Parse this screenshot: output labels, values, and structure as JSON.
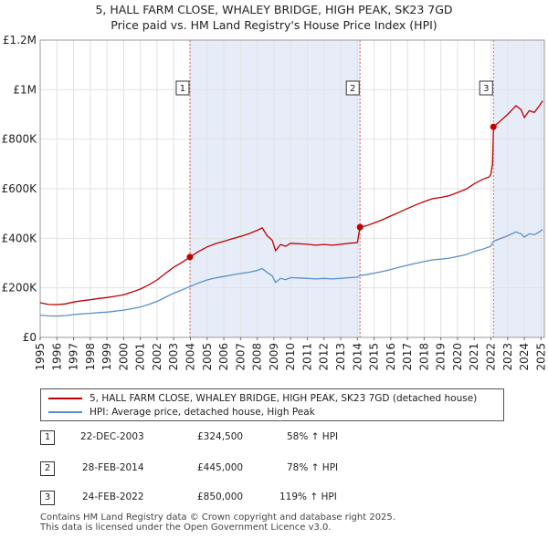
{
  "title": "5, HALL FARM CLOSE, WHALEY BRIDGE, HIGH PEAK, SK23 7GD",
  "subtitle": "Price paid vs. HM Land Registry's House Price Index (HPI)",
  "colors": {
    "property": "#c00000",
    "hpi": "#5b8fc9",
    "shade": "#e6ecf8",
    "marker_line": "#e06060"
  },
  "chart_data": {
    "type": "line",
    "x_range": [
      1995,
      2025.2
    ],
    "y_range": [
      0,
      1200000
    ],
    "y_ticks": [
      {
        "value": 0,
        "label": "£0"
      },
      {
        "value": 200000,
        "label": "£200K"
      },
      {
        "value": 400000,
        "label": "£400K"
      },
      {
        "value": 600000,
        "label": "£600K"
      },
      {
        "value": 800000,
        "label": "£800K"
      },
      {
        "value": 1000000,
        "label": "£1M"
      },
      {
        "value": 1200000,
        "label": "£1.2M"
      }
    ],
    "x_ticks": [
      "1995",
      "1996",
      "1997",
      "1998",
      "1999",
      "2000",
      "2001",
      "2002",
      "2003",
      "2004",
      "2005",
      "2006",
      "2007",
      "2008",
      "2009",
      "2010",
      "2011",
      "2012",
      "2013",
      "2014",
      "2015",
      "2016",
      "2017",
      "2018",
      "2019",
      "2020",
      "2021",
      "2022",
      "2023",
      "2024",
      "2025"
    ],
    "shaded_periods": [
      [
        2003.97,
        2014.16
      ],
      [
        2022.15,
        2025.2
      ]
    ],
    "series": [
      {
        "name": "5, HALL FARM CLOSE, WHALEY BRIDGE, HIGH PEAK, SK23 7GD (detached house)",
        "color": "#c00000",
        "points": [
          [
            1995.0,
            140000
          ],
          [
            1995.5,
            133000
          ],
          [
            1996.0,
            132000
          ],
          [
            1996.5,
            135000
          ],
          [
            1997.0,
            143000
          ],
          [
            1997.5,
            148000
          ],
          [
            1998.0,
            152000
          ],
          [
            1998.5,
            157000
          ],
          [
            1999.0,
            161000
          ],
          [
            1999.5,
            166000
          ],
          [
            2000.0,
            172000
          ],
          [
            2000.5,
            183000
          ],
          [
            2001.0,
            195000
          ],
          [
            2001.5,
            212000
          ],
          [
            2002.0,
            232000
          ],
          [
            2002.5,
            258000
          ],
          [
            2003.0,
            283000
          ],
          [
            2003.5,
            303000
          ],
          [
            2003.97,
            324500
          ],
          [
            2004.5,
            347000
          ],
          [
            2005.0,
            365000
          ],
          [
            2005.5,
            378000
          ],
          [
            2006.0,
            388000
          ],
          [
            2006.5,
            398000
          ],
          [
            2007.0,
            408000
          ],
          [
            2007.5,
            418000
          ],
          [
            2008.0,
            432000
          ],
          [
            2008.3,
            442000
          ],
          [
            2008.6,
            410000
          ],
          [
            2008.9,
            392000
          ],
          [
            2009.1,
            350000
          ],
          [
            2009.4,
            375000
          ],
          [
            2009.7,
            368000
          ],
          [
            2010.0,
            380000
          ],
          [
            2010.5,
            378000
          ],
          [
            2011.0,
            376000
          ],
          [
            2011.5,
            372000
          ],
          [
            2012.0,
            375000
          ],
          [
            2012.5,
            372000
          ],
          [
            2013.0,
            376000
          ],
          [
            2013.5,
            380000
          ],
          [
            2014.0,
            383000
          ],
          [
            2014.16,
            445000
          ],
          [
            2014.5,
            450000
          ],
          [
            2015.0,
            462000
          ],
          [
            2015.5,
            475000
          ],
          [
            2016.0,
            490000
          ],
          [
            2016.5,
            505000
          ],
          [
            2017.0,
            520000
          ],
          [
            2017.5,
            535000
          ],
          [
            2018.0,
            548000
          ],
          [
            2018.5,
            560000
          ],
          [
            2019.0,
            565000
          ],
          [
            2019.5,
            572000
          ],
          [
            2020.0,
            585000
          ],
          [
            2020.5,
            598000
          ],
          [
            2021.0,
            620000
          ],
          [
            2021.5,
            638000
          ],
          [
            2021.9,
            648000
          ],
          [
            2022.0,
            660000
          ],
          [
            2022.1,
            700000
          ],
          [
            2022.15,
            850000
          ],
          [
            2022.5,
            870000
          ],
          [
            2023.0,
            900000
          ],
          [
            2023.5,
            935000
          ],
          [
            2023.8,
            920000
          ],
          [
            2024.0,
            888000
          ],
          [
            2024.3,
            915000
          ],
          [
            2024.6,
            908000
          ],
          [
            2024.9,
            935000
          ],
          [
            2025.1,
            955000
          ]
        ]
      },
      {
        "name": "HPI: Average price, detached house, High Peak",
        "color": "#5b8fc9",
        "points": [
          [
            1995.0,
            90000
          ],
          [
            1995.5,
            87000
          ],
          [
            1996.0,
            86000
          ],
          [
            1996.5,
            88000
          ],
          [
            1997.0,
            92000
          ],
          [
            1997.5,
            95000
          ],
          [
            1998.0,
            97000
          ],
          [
            1998.5,
            100000
          ],
          [
            1999.0,
            102000
          ],
          [
            1999.5,
            106000
          ],
          [
            2000.0,
            110000
          ],
          [
            2000.5,
            116000
          ],
          [
            2001.0,
            123000
          ],
          [
            2001.5,
            133000
          ],
          [
            2002.0,
            145000
          ],
          [
            2002.5,
            162000
          ],
          [
            2003.0,
            178000
          ],
          [
            2003.5,
            192000
          ],
          [
            2003.97,
            205000
          ],
          [
            2004.5,
            220000
          ],
          [
            2005.0,
            232000
          ],
          [
            2005.5,
            240000
          ],
          [
            2006.0,
            246000
          ],
          [
            2006.5,
            252000
          ],
          [
            2007.0,
            258000
          ],
          [
            2007.5,
            263000
          ],
          [
            2008.0,
            270000
          ],
          [
            2008.3,
            278000
          ],
          [
            2008.6,
            262000
          ],
          [
            2008.9,
            248000
          ],
          [
            2009.1,
            222000
          ],
          [
            2009.4,
            238000
          ],
          [
            2009.7,
            233000
          ],
          [
            2010.0,
            241000
          ],
          [
            2010.5,
            240000
          ],
          [
            2011.0,
            238000
          ],
          [
            2011.5,
            236000
          ],
          [
            2012.0,
            238000
          ],
          [
            2012.5,
            236000
          ],
          [
            2013.0,
            238000
          ],
          [
            2013.5,
            241000
          ],
          [
            2014.0,
            243000
          ],
          [
            2014.16,
            250000
          ],
          [
            2014.5,
            253000
          ],
          [
            2015.0,
            259000
          ],
          [
            2015.5,
            266000
          ],
          [
            2016.0,
            274000
          ],
          [
            2016.5,
            283000
          ],
          [
            2017.0,
            291000
          ],
          [
            2017.5,
            299000
          ],
          [
            2018.0,
            306000
          ],
          [
            2018.5,
            313000
          ],
          [
            2019.0,
            316000
          ],
          [
            2019.5,
            320000
          ],
          [
            2020.0,
            327000
          ],
          [
            2020.5,
            334000
          ],
          [
            2021.0,
            347000
          ],
          [
            2021.5,
            356000
          ],
          [
            2022.0,
            368000
          ],
          [
            2022.15,
            388000
          ],
          [
            2022.5,
            397000
          ],
          [
            2023.0,
            410000
          ],
          [
            2023.5,
            426000
          ],
          [
            2023.8,
            418000
          ],
          [
            2024.0,
            405000
          ],
          [
            2024.3,
            418000
          ],
          [
            2024.6,
            414000
          ],
          [
            2024.9,
            426000
          ],
          [
            2025.1,
            436000
          ]
        ]
      }
    ],
    "sale_markers": [
      {
        "label": "1",
        "x": 2003.97,
        "y": 324500
      },
      {
        "label": "2",
        "x": 2014.16,
        "y": 445000
      },
      {
        "label": "3",
        "x": 2022.15,
        "y": 850000
      }
    ]
  },
  "legend": {
    "property_label": "5, HALL FARM CLOSE, WHALEY BRIDGE, HIGH PEAK, SK23 7GD (detached house)",
    "hpi_label": "HPI: Average price, detached house, High Peak"
  },
  "sales": [
    {
      "num": "1",
      "date": "22-DEC-2003",
      "price": "£324,500",
      "hpi": "58% ↑ HPI"
    },
    {
      "num": "2",
      "date": "28-FEB-2014",
      "price": "£445,000",
      "hpi": "78% ↑ HPI"
    },
    {
      "num": "3",
      "date": "24-FEB-2022",
      "price": "£850,000",
      "hpi": "119% ↑ HPI"
    }
  ],
  "footer": {
    "line1": "Contains HM Land Registry data © Crown copyright and database right 2025.",
    "line2": "This data is licensed under the Open Government Licence v3.0."
  }
}
